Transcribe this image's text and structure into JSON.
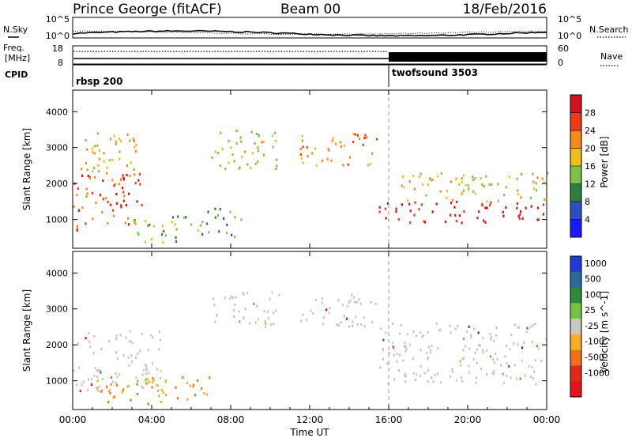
{
  "header": {
    "station": "Prince George (fitACF)",
    "beam": "Beam 00",
    "date": "18/Feb/2016"
  },
  "top_panel": {
    "left_label": "N.Sky",
    "right_label": "N.Search",
    "y_ticks_left": [
      "10^5",
      "10^0"
    ],
    "y_ticks_right": [
      "10^5",
      "10^0"
    ]
  },
  "freq_panel": {
    "left_label_1": "Freq.",
    "left_label_2": "[MHz]",
    "right_label": "Nave",
    "y_ticks_left": [
      "18",
      "8"
    ],
    "y_ticks_right": [
      "60",
      "0"
    ]
  },
  "cpid": {
    "label": "CPID",
    "segments": [
      {
        "name": "rbsp 200",
        "start_hour": 0
      },
      {
        "name": "twofsound 3503",
        "start_hour": 16
      }
    ]
  },
  "chart_data": [
    {
      "type": "heatmap",
      "title": "",
      "ylabel": "Slant Range [km]",
      "ylim": [
        200,
        4600
      ],
      "y_ticks": [
        1000,
        2000,
        3000,
        4000
      ],
      "colorbar": {
        "label": "Power [dB]",
        "ticks": [
          4,
          8,
          12,
          16,
          20,
          24,
          28
        ],
        "range": [
          0,
          32
        ],
        "colors": [
          "#1a1aff",
          "#2a50c0",
          "#2e7e3e",
          "#7fc24a",
          "#e8c21a",
          "#f58a18",
          "#ef3a16",
          "#d4121a"
        ]
      },
      "echo_regions": [
        {
          "t": [
            0.0,
            3.5
          ],
          "r": [
            700,
            2300
          ],
          "level": 6
        },
        {
          "t": [
            0.3,
            3.5
          ],
          "r": [
            2200,
            3400
          ],
          "level": 4
        },
        {
          "t": [
            3.0,
            6.5
          ],
          "r": [
            350,
            1100
          ],
          "level": 3
        },
        {
          "t": [
            6.5,
            8.5
          ],
          "r": [
            500,
            1300
          ],
          "level": 2
        },
        {
          "t": [
            7.0,
            10.5
          ],
          "r": [
            2400,
            3500
          ],
          "level": 4
        },
        {
          "t": [
            11.5,
            15.5
          ],
          "r": [
            2500,
            3400
          ],
          "level": 5
        },
        {
          "t": [
            15.5,
            24.0
          ],
          "r": [
            900,
            1500
          ],
          "level": 7
        },
        {
          "t": [
            16.5,
            24.0
          ],
          "r": [
            1500,
            2300
          ],
          "level": 4
        }
      ]
    },
    {
      "type": "heatmap",
      "title": "",
      "ylabel": "Slant Range [km]",
      "ylim": [
        200,
        4600
      ],
      "y_ticks": [
        1000,
        2000,
        3000,
        4000
      ],
      "colorbar": {
        "label": "Velocity [m s^-1]",
        "ticks": [
          "1000",
          "500",
          "100",
          "25",
          "-25",
          "-100",
          "-500",
          "-1000"
        ],
        "colors": [
          "#1e3ad8",
          "#2a6a9a",
          "#2f8a3e",
          "#74c444",
          "#c8c8c0",
          "#f5b020",
          "#f07018",
          "#e02a18",
          "#e8101a"
        ]
      },
      "echo_regions": [
        {
          "t": [
            0.0,
            4.5
          ],
          "r": [
            700,
            2400
          ],
          "class": "ground"
        },
        {
          "t": [
            1.0,
            7.0
          ],
          "r": [
            350,
            1100
          ],
          "class": "negative"
        },
        {
          "t": [
            7.0,
            10.5
          ],
          "r": [
            2500,
            3500
          ],
          "class": "ground"
        },
        {
          "t": [
            11.5,
            15.5
          ],
          "r": [
            2500,
            3400
          ],
          "class": "ground"
        },
        {
          "t": [
            15.5,
            24.0
          ],
          "r": [
            900,
            2600
          ],
          "class": "ground"
        }
      ]
    }
  ],
  "x_axis": {
    "label": "Time UT",
    "ticks": [
      "00:00",
      "04:00",
      "08:00",
      "12:00",
      "16:00",
      "20:00",
      "00:00"
    ],
    "range_hours": [
      0,
      24
    ]
  }
}
